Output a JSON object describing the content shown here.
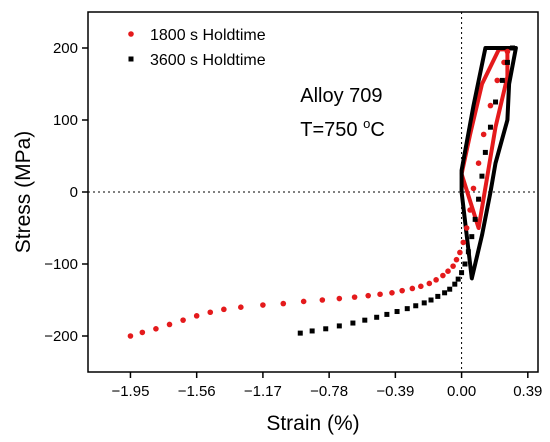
{
  "chart_data": {
    "type": "scatter",
    "xlabel": "Strain (%)",
    "ylabel": "Stress (MPa)",
    "xlim": [
      -2.2,
      0.45
    ],
    "ylim": [
      -250,
      250
    ],
    "xticks": [
      -1.95,
      -1.56,
      -1.17,
      -0.78,
      -0.39,
      0.0,
      0.39
    ],
    "xtick_labels": [
      "−1.95",
      "−1.56",
      "−1.17",
      "−0.78",
      "−0.39",
      "0.00",
      "0.39"
    ],
    "yticks": [
      -200,
      -100,
      0,
      100,
      200
    ],
    "ytick_labels": [
      "−200",
      "−100",
      "0",
      "100",
      "200"
    ],
    "reference_lines": {
      "x": 0,
      "y": 0,
      "style": "dotted"
    },
    "legend_position": "top-left",
    "annotations": [
      {
        "text": "Alloy 709",
        "x": -0.95,
        "y": 125
      },
      {
        "text_before": "T=750 ",
        "superscript": "o",
        "text_after": "C",
        "x": -0.95,
        "y": 78
      }
    ],
    "series": [
      {
        "name": "1800 s Holdtime",
        "color": "#e41a1c",
        "marker": "circle",
        "x": [
          -1.95,
          -1.88,
          -1.8,
          -1.72,
          -1.64,
          -1.56,
          -1.48,
          -1.4,
          -1.3,
          -1.17,
          -1.05,
          -0.93,
          -0.82,
          -0.72,
          -0.63,
          -0.55,
          -0.48,
          -0.41,
          -0.35,
          -0.29,
          -0.24,
          -0.19,
          -0.15,
          -0.11,
          -0.08,
          -0.05,
          -0.03,
          -0.01,
          0.01,
          0.03,
          0.05,
          0.07,
          0.1,
          0.13,
          0.17,
          0.21,
          0.25,
          0.27
        ],
        "y": [
          -200,
          -195,
          -190,
          -184,
          -178,
          -172,
          -167,
          -163,
          -160,
          -157,
          -155,
          -152,
          -150,
          -148,
          -146,
          -144,
          -142,
          -140,
          -137,
          -134,
          -131,
          -127,
          -122,
          -116,
          -110,
          -103,
          -94,
          -84,
          -70,
          -50,
          -25,
          5,
          40,
          80,
          120,
          155,
          180,
          195
        ]
      },
      {
        "name": "3600 s Holdtime",
        "color": "#000000",
        "marker": "square",
        "x": [
          -0.95,
          -0.88,
          -0.8,
          -0.72,
          -0.64,
          -0.57,
          -0.5,
          -0.44,
          -0.38,
          -0.32,
          -0.27,
          -0.22,
          -0.18,
          -0.14,
          -0.1,
          -0.07,
          -0.04,
          -0.02,
          0.0,
          0.02,
          0.04,
          0.06,
          0.08,
          0.1,
          0.12,
          0.14,
          0.17,
          0.2,
          0.24,
          0.27,
          0.3
        ],
        "y": [
          -196,
          -193,
          -190,
          -186,
          -182,
          -178,
          -174,
          -170,
          -166,
          -162,
          -158,
          -154,
          -150,
          -145,
          -140,
          -135,
          -128,
          -121,
          -112,
          -100,
          -83,
          -62,
          -38,
          -10,
          22,
          55,
          90,
          125,
          155,
          180,
          200
        ]
      }
    ],
    "loops": [
      {
        "series": "1800 s Holdtime",
        "color": "#e41a1c",
        "points": [
          [
            0.0,
            25
          ],
          [
            0.05,
            80
          ],
          [
            0.12,
            150
          ],
          [
            0.22,
            198
          ],
          [
            0.27,
            198
          ],
          [
            0.27,
            160
          ],
          [
            0.2,
            90
          ],
          [
            0.15,
            20
          ],
          [
            0.1,
            -50
          ],
          [
            0.0,
            25
          ]
        ]
      },
      {
        "series": "3600 s Holdtime",
        "color": "#000000",
        "points": [
          [
            0.0,
            0
          ],
          [
            0.0,
            30
          ],
          [
            0.07,
            120
          ],
          [
            0.14,
            200
          ],
          [
            0.32,
            200
          ],
          [
            0.28,
            150
          ],
          [
            0.27,
            100
          ],
          [
            0.2,
            40
          ],
          [
            0.17,
            0
          ],
          [
            0.12,
            -60
          ],
          [
            0.06,
            -120
          ],
          [
            0.0,
            0
          ]
        ]
      }
    ]
  }
}
